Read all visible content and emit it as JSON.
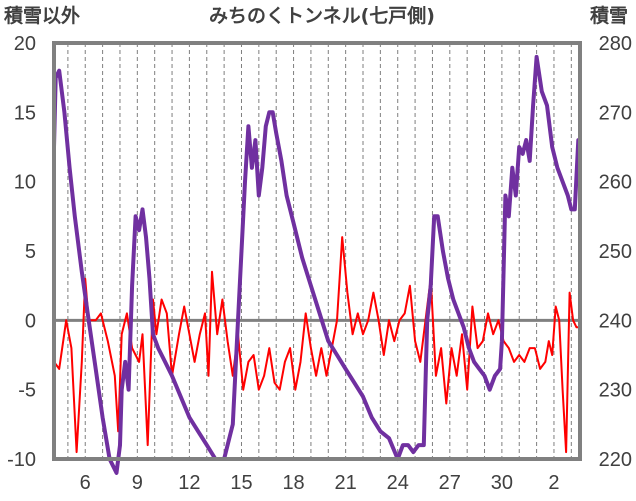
{
  "chart_data": {
    "type": "line",
    "title": "みちのくトンネル(七戸側)",
    "ylabel_left": "積雪以外",
    "ylabel_right": "積雪",
    "x_ticks": [
      {
        "day": 6,
        "label": "6"
      },
      {
        "day": 9,
        "label": "9"
      },
      {
        "day": 12,
        "label": "12"
      },
      {
        "day": 15,
        "label": "15"
      },
      {
        "day": 18,
        "label": "18"
      },
      {
        "day": 21,
        "label": "21"
      },
      {
        "day": 24,
        "label": "24"
      },
      {
        "day": 27,
        "label": "27"
      },
      {
        "day": 30,
        "label": "30"
      },
      {
        "day": 33,
        "label": "2"
      }
    ],
    "xlim": [
      4.2,
      34.5
    ],
    "ylim_left": [
      -10,
      20
    ],
    "ylim_right": [
      220,
      280
    ],
    "y_ticks_left": [
      "-10",
      "-5",
      "0",
      "5",
      "10",
      "15",
      "20"
    ],
    "y_ticks_right": [
      "220",
      "230",
      "240",
      "250",
      "260",
      "270",
      "280"
    ],
    "grid": "vertical dashed, one line per day",
    "series": [
      {
        "axis": "left",
        "color": "#ff0000",
        "x": [
          4.2,
          4.5,
          4.9,
          5.2,
          5.5,
          5.8,
          6.0,
          6.2,
          6.6,
          6.9,
          7.3,
          7.7,
          7.9,
          8.1,
          8.4,
          8.7,
          8.9,
          9.1,
          9.3,
          9.6,
          9.9,
          10.1,
          10.4,
          10.7,
          11.0,
          11.4,
          11.7,
          12.0,
          12.3,
          12.6,
          12.9,
          13.1,
          13.3,
          13.6,
          13.9,
          14.2,
          14.5,
          14.8,
          15.1,
          15.4,
          15.7,
          16.0,
          16.3,
          16.6,
          16.9,
          17.2,
          17.5,
          17.8,
          18.1,
          18.4,
          18.7,
          19.0,
          19.3,
          19.6,
          19.9,
          20.2,
          20.5,
          20.8,
          21.1,
          21.4,
          21.7,
          22.0,
          22.3,
          22.6,
          22.9,
          23.2,
          23.5,
          23.8,
          24.1,
          24.4,
          24.7,
          25.0,
          25.3,
          25.6,
          25.9,
          26.2,
          26.5,
          26.8,
          27.1,
          27.4,
          27.7,
          28.0,
          28.3,
          28.6,
          28.9,
          29.2,
          29.5,
          29.8,
          30.1,
          30.4,
          30.7,
          31.0,
          31.3,
          31.6,
          31.9,
          32.2,
          32.5,
          32.7,
          32.9,
          33.1,
          33.3,
          33.5,
          33.7,
          33.9,
          34.1,
          34.3,
          34.5
        ],
        "values": [
          -3,
          -3.5,
          0,
          -2,
          -9.5,
          -3,
          3,
          0,
          0,
          0.5,
          -1.5,
          -4,
          -8,
          -1,
          0.5,
          -2,
          -2.5,
          -3,
          -1,
          -9,
          1.5,
          -1,
          1.5,
          0.5,
          -4,
          -1,
          1,
          -1,
          -3,
          -1,
          0.5,
          -4,
          3.5,
          -1,
          1.5,
          -1.5,
          -4,
          -1,
          -5,
          -3,
          -2.5,
          -5,
          -4,
          -2,
          -4.5,
          -5,
          -3,
          -2,
          -5,
          -3,
          0.5,
          -2,
          -4,
          -2,
          -4,
          -2,
          0,
          6,
          2,
          -1,
          0.5,
          -1,
          0,
          2,
          0,
          -2.5,
          0,
          -1.5,
          0,
          0.5,
          2.5,
          -1.5,
          -3,
          0,
          3,
          -4,
          -2,
          -6,
          -2,
          -4,
          -1,
          -5,
          1,
          -2,
          -1.5,
          0.5,
          -1,
          0,
          -1.5,
          -2,
          -3,
          -2.5,
          -3,
          -2,
          -2,
          -3.5,
          -3,
          -1.5,
          -2.5,
          1,
          0,
          -5,
          -9.5,
          2,
          0,
          -0.5,
          -0.5
        ]
      },
      {
        "axis": "right",
        "color": "#7030a0",
        "x": [
          4.2,
          4.3,
          4.5,
          4.8,
          5.1,
          5.4,
          5.8,
          6.2,
          6.6,
          7.0,
          7.4,
          7.8,
          8.0,
          8.1,
          8.3,
          8.5,
          8.7,
          8.9,
          9.1,
          9.3,
          9.5,
          9.7,
          9.9,
          10.2,
          10.6,
          11.0,
          11.5,
          12.0,
          12.5,
          13.0,
          13.5,
          14.0,
          14.5,
          14.8,
          15.0,
          15.2,
          15.4,
          15.6,
          15.8,
          16.0,
          16.2,
          16.4,
          16.6,
          16.8,
          17.0,
          17.3,
          17.6,
          18.0,
          18.5,
          19.0,
          19.5,
          20.0,
          20.5,
          21.0,
          21.5,
          22.0,
          22.5,
          23.0,
          23.5,
          24.0,
          24.3,
          24.6,
          24.9,
          25.2,
          25.5,
          25.7,
          25.9,
          26.1,
          26.3,
          26.6,
          26.9,
          27.2,
          27.5,
          27.8,
          28.1,
          28.4,
          28.7,
          29.0,
          29.3,
          29.6,
          29.9,
          30.0,
          30.2,
          30.4,
          30.6,
          30.8,
          31.0,
          31.2,
          31.4,
          31.6,
          31.8,
          32.0,
          32.3,
          32.6,
          32.9,
          33.2,
          33.5,
          33.8,
          34.0,
          34.2,
          34.4,
          34.5
        ],
        "values": [
          265,
          275,
          276,
          270,
          262,
          255,
          247,
          240,
          233,
          226,
          220,
          218,
          222,
          230,
          234,
          230,
          245,
          255,
          253,
          256,
          252,
          246,
          238,
          236,
          234,
          232,
          229,
          226,
          224,
          222,
          220,
          220,
          225,
          240,
          250,
          260,
          268,
          262,
          266,
          258,
          262,
          268,
          270,
          270,
          267,
          263,
          258,
          254,
          249,
          245,
          241,
          237,
          235,
          233,
          231,
          229,
          226,
          224,
          223,
          220,
          222,
          222,
          221,
          222,
          222,
          240,
          245,
          255,
          255,
          250,
          246,
          243,
          241,
          239,
          236,
          234,
          233,
          232,
          230,
          232,
          233,
          237,
          258,
          255,
          262,
          258,
          265,
          264,
          266,
          263,
          271,
          278,
          273,
          271,
          265,
          262,
          260,
          258,
          256,
          256,
          266,
          266
        ]
      }
    ]
  }
}
